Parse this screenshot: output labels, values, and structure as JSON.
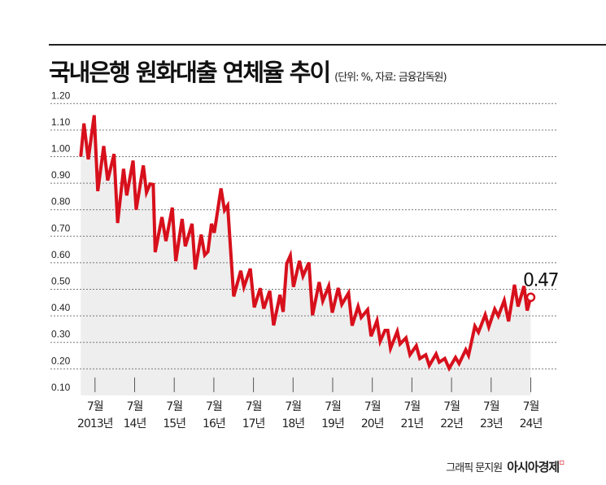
{
  "chart_data": {
    "type": "area",
    "title": "국내은행 원화대출 연체율 추이",
    "subtitle": "(단위: %, 자료: 금융감독원)",
    "ylim": [
      0.1,
      1.2
    ],
    "yticks": [
      "1.20",
      "1.10",
      "1.00",
      "0.90",
      "0.80",
      "0.70",
      "0.60",
      "0.50",
      "0.40",
      "0.30",
      "0.20",
      "0.10"
    ],
    "xticks": [
      {
        "x": 2013.5,
        "month": "7월",
        "year": "2013년"
      },
      {
        "x": 2014.5,
        "month": "7월",
        "year": "14년"
      },
      {
        "x": 2015.5,
        "month": "7월",
        "year": "15년"
      },
      {
        "x": 2016.5,
        "month": "7월",
        "year": "16년"
      },
      {
        "x": 2017.5,
        "month": "7월",
        "year": "17년"
      },
      {
        "x": 2018.5,
        "month": "7월",
        "year": "18년"
      },
      {
        "x": 2019.5,
        "month": "7월",
        "year": "19년"
      },
      {
        "x": 2020.5,
        "month": "7월",
        "year": "20년"
      },
      {
        "x": 2021.5,
        "month": "7월",
        "year": "21년"
      },
      {
        "x": 2022.5,
        "month": "7월",
        "year": "22년"
      },
      {
        "x": 2023.5,
        "month": "7월",
        "year": "23년"
      },
      {
        "x": 2024.5,
        "month": "7월",
        "year": "24년"
      }
    ],
    "grid": true,
    "line_color": "#d7101c",
    "fill_color": "#eeeeee",
    "points": [
      [
        2013.14,
        1.0
      ],
      [
        2013.22,
        1.125
      ],
      [
        2013.33,
        0.99
      ],
      [
        2013.48,
        1.156
      ],
      [
        2013.57,
        0.87
      ],
      [
        2013.72,
        1.04
      ],
      [
        2013.82,
        0.91
      ],
      [
        2013.98,
        1.01
      ],
      [
        2014.07,
        0.75
      ],
      [
        2014.22,
        0.954
      ],
      [
        2014.3,
        0.854
      ],
      [
        2014.46,
        0.985
      ],
      [
        2014.54,
        0.8
      ],
      [
        2014.72,
        0.967
      ],
      [
        2014.8,
        0.865
      ],
      [
        2014.89,
        0.897
      ],
      [
        2014.97,
        0.895
      ],
      [
        2015.02,
        0.64
      ],
      [
        2015.19,
        0.772
      ],
      [
        2015.29,
        0.682
      ],
      [
        2015.45,
        0.808
      ],
      [
        2015.54,
        0.606
      ],
      [
        2015.7,
        0.765
      ],
      [
        2015.78,
        0.662
      ],
      [
        2015.95,
        0.747
      ],
      [
        2016.03,
        0.575
      ],
      [
        2016.18,
        0.706
      ],
      [
        2016.27,
        0.629
      ],
      [
        2016.35,
        0.642
      ],
      [
        2016.44,
        0.747
      ],
      [
        2016.51,
        0.713
      ],
      [
        2016.68,
        0.88
      ],
      [
        2016.77,
        0.798
      ],
      [
        2016.85,
        0.816
      ],
      [
        2017.0,
        0.473
      ],
      [
        2017.18,
        0.57
      ],
      [
        2017.26,
        0.509
      ],
      [
        2017.42,
        0.578
      ],
      [
        2017.52,
        0.432
      ],
      [
        2017.67,
        0.504
      ],
      [
        2017.76,
        0.427
      ],
      [
        2017.91,
        0.494
      ],
      [
        2018.01,
        0.364
      ],
      [
        2018.17,
        0.479
      ],
      [
        2018.25,
        0.415
      ],
      [
        2018.34,
        0.597
      ],
      [
        2018.43,
        0.627
      ],
      [
        2018.51,
        0.509
      ],
      [
        2018.66,
        0.607
      ],
      [
        2018.75,
        0.55
      ],
      [
        2018.9,
        0.601
      ],
      [
        2018.99,
        0.402
      ],
      [
        2019.16,
        0.527
      ],
      [
        2019.25,
        0.456
      ],
      [
        2019.4,
        0.512
      ],
      [
        2019.49,
        0.412
      ],
      [
        2019.64,
        0.505
      ],
      [
        2019.73,
        0.443
      ],
      [
        2019.9,
        0.486
      ],
      [
        2019.99,
        0.363
      ],
      [
        2020.14,
        0.435
      ],
      [
        2020.22,
        0.394
      ],
      [
        2020.38,
        0.423
      ],
      [
        2020.47,
        0.323
      ],
      [
        2020.62,
        0.382
      ],
      [
        2020.7,
        0.304
      ],
      [
        2020.82,
        0.345
      ],
      [
        2020.89,
        0.345
      ],
      [
        2020.96,
        0.277
      ],
      [
        2021.13,
        0.341
      ],
      [
        2021.2,
        0.294
      ],
      [
        2021.35,
        0.317
      ],
      [
        2021.45,
        0.253
      ],
      [
        2021.61,
        0.287
      ],
      [
        2021.7,
        0.239
      ],
      [
        2021.85,
        0.253
      ],
      [
        2021.94,
        0.213
      ],
      [
        2022.11,
        0.256
      ],
      [
        2022.19,
        0.225
      ],
      [
        2022.33,
        0.239
      ],
      [
        2022.44,
        0.202
      ],
      [
        2022.6,
        0.243
      ],
      [
        2022.69,
        0.22
      ],
      [
        2022.86,
        0.272
      ],
      [
        2022.93,
        0.251
      ],
      [
        2023.09,
        0.361
      ],
      [
        2023.18,
        0.338
      ],
      [
        2023.35,
        0.404
      ],
      [
        2023.44,
        0.358
      ],
      [
        2023.59,
        0.425
      ],
      [
        2023.68,
        0.399
      ],
      [
        2023.83,
        0.458
      ],
      [
        2023.94,
        0.379
      ],
      [
        2024.09,
        0.517
      ],
      [
        2024.18,
        0.435
      ],
      [
        2024.33,
        0.512
      ],
      [
        2024.41,
        0.42
      ],
      [
        2024.5,
        0.47
      ]
    ],
    "annotation": {
      "label": "0.47",
      "value": 0.47
    }
  },
  "credit": {
    "author": "그래픽 문지원",
    "logo": "아시아경제"
  }
}
